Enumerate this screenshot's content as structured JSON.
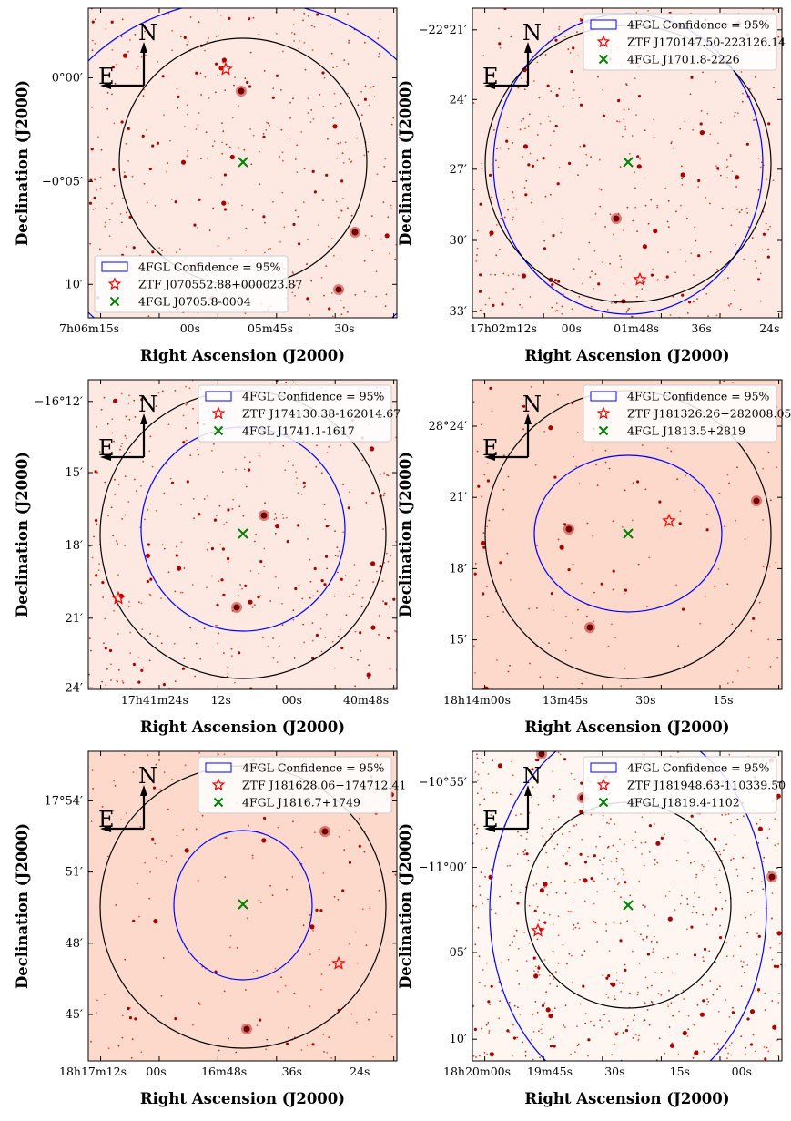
{
  "figure": {
    "axis_label_ra": "Right Ascension (J2000)",
    "axis_label_dec": "Declination (J2000)",
    "compass": {
      "north": "N",
      "east": "E"
    },
    "colors": {
      "confidence_ellipse": "#0000ff",
      "circle": "#000000",
      "ztf_star": "#ff0000",
      "fgl_cross": "#008000",
      "background_faint": "#fde9e2",
      "star_dark": "#aa0000"
    }
  },
  "panels": [
    {
      "legend_position": "bottom-left",
      "legend": [
        {
          "symbol": "ellipse",
          "label": "4FGL Confidence = 95%"
        },
        {
          "symbol": "star",
          "label": "ZTF J070552.88+000023.87"
        },
        {
          "symbol": "cross",
          "label": "4FGL J0705.8-0004"
        }
      ],
      "dec_ticks": [
        {
          "deg": "0°00′",
          "frac": 0.225
        },
        {
          "deg": "−0°05′",
          "frac": 0.56
        },
        {
          "deg": "10′",
          "frac": 0.892
        }
      ],
      "ra_ticks": [
        {
          "label": "7h06m15s",
          "frac": 0.0
        },
        {
          "label": "00s",
          "frac": 0.33
        },
        {
          "label": "05m45s",
          "frac": 0.59
        },
        {
          "label": "30s",
          "frac": 0.83
        }
      ]
    },
    {
      "legend_position": "top-right",
      "legend": [
        {
          "symbol": "ellipse",
          "label": "4FGL Confidence = 95%"
        },
        {
          "symbol": "star",
          "label": "ZTF J170147.50-223126.14"
        },
        {
          "symbol": "cross",
          "label": "4FGL J1701.8-2226"
        }
      ],
      "dec_ticks": [
        {
          "deg": "−22°21′",
          "frac": 0.07
        },
        {
          "deg": "24′",
          "frac": 0.295
        },
        {
          "deg": "27′",
          "frac": 0.52
        },
        {
          "deg": "30′",
          "frac": 0.75
        },
        {
          "deg": "33′",
          "frac": 0.98
        }
      ],
      "ra_ticks": [
        {
          "label": "17h02m12s",
          "frac": 0.1
        },
        {
          "label": "00s",
          "frac": 0.32
        },
        {
          "label": "01m48s",
          "frac": 0.53
        },
        {
          "label": "36s",
          "frac": 0.74
        },
        {
          "label": "24s",
          "frac": 0.96
        }
      ]
    },
    {
      "legend_position": "top-right",
      "legend": [
        {
          "symbol": "ellipse",
          "label": "4FGL Confidence = 95%"
        },
        {
          "symbol": "star",
          "label": "ZTF J174130.38-162014.67"
        },
        {
          "symbol": "cross",
          "label": "4FGL J1741.1-1617"
        }
      ],
      "dec_ticks": [
        {
          "deg": "−16°12′",
          "frac": 0.07
        },
        {
          "deg": "15′",
          "frac": 0.3
        },
        {
          "deg": "18′",
          "frac": 0.535
        },
        {
          "deg": "21′",
          "frac": 0.77
        },
        {
          "deg": "24′",
          "frac": 0.995
        }
      ],
      "ra_ticks": [
        {
          "label": "17h41m24s",
          "frac": 0.215
        },
        {
          "label": "12s",
          "frac": 0.43
        },
        {
          "label": "00s",
          "frac": 0.66
        },
        {
          "label": "40m48s",
          "frac": 0.9
        }
      ]
    },
    {
      "legend_position": "top-right",
      "legend": [
        {
          "symbol": "ellipse",
          "label": "4FGL Confidence = 95%"
        },
        {
          "symbol": "star",
          "label": "ZTF J181326.26+282008.05"
        },
        {
          "symbol": "cross",
          "label": "4FGL J1813.5+2819"
        }
      ],
      "dec_ticks": [
        {
          "deg": "28°24′",
          "frac": 0.15
        },
        {
          "deg": "21′",
          "frac": 0.38
        },
        {
          "deg": "18′",
          "frac": 0.61
        },
        {
          "deg": "15′",
          "frac": 0.84
        }
      ],
      "ra_ticks": [
        {
          "label": "18h14m00s",
          "frac": 0.0
        },
        {
          "label": "13m45s",
          "frac": 0.3
        },
        {
          "label": "30s",
          "frac": 0.56
        },
        {
          "label": "15s",
          "frac": 0.81
        }
      ]
    },
    {
      "legend_position": "top-right",
      "legend": [
        {
          "symbol": "ellipse",
          "label": "4FGL Confidence = 95%"
        },
        {
          "symbol": "star",
          "label": "ZTF J181628.06+174712.41"
        },
        {
          "symbol": "cross",
          "label": "4FGL J1816.7+1749"
        }
      ],
      "dec_ticks": [
        {
          "deg": "17°54′",
          "frac": 0.16
        },
        {
          "deg": "51′",
          "frac": 0.39
        },
        {
          "deg": "48′",
          "frac": 0.62
        },
        {
          "deg": "45′",
          "frac": 0.85
        }
      ],
      "ra_ticks": [
        {
          "label": "18h17m12s",
          "frac": 0.0
        },
        {
          "label": "00s",
          "frac": 0.22
        },
        {
          "label": "16m48s",
          "frac": 0.44
        },
        {
          "label": "36s",
          "frac": 0.66
        },
        {
          "label": "24s",
          "frac": 0.88
        }
      ]
    },
    {
      "legend_position": "top-right",
      "legend": [
        {
          "symbol": "ellipse",
          "label": "4FGL Confidence = 95%"
        },
        {
          "symbol": "star",
          "label": "ZTF J181948.63-110339.50"
        },
        {
          "symbol": "cross",
          "label": "4FGL J1819.4-1102"
        }
      ],
      "dec_ticks": [
        {
          "deg": "−10°55′",
          "frac": 0.1
        },
        {
          "deg": "−11°00′",
          "frac": 0.375
        },
        {
          "deg": "05′",
          "frac": 0.65
        },
        {
          "deg": "10′",
          "frac": 0.93
        }
      ],
      "ra_ticks": [
        {
          "label": "18h20m00s",
          "frac": 0.0
        },
        {
          "label": "19m45s",
          "frac": 0.25
        },
        {
          "label": "30s",
          "frac": 0.46
        },
        {
          "label": "15s",
          "frac": 0.67
        },
        {
          "label": "00s",
          "frac": 0.87
        }
      ]
    }
  ]
}
